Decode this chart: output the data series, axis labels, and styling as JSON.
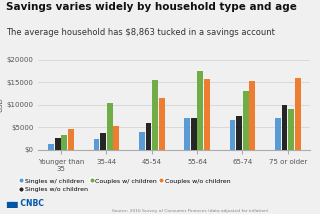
{
  "title": "Savings varies widely by household type and age",
  "subtitle": "The average household has $8,863 tucked in a savings account",
  "categories": [
    "Younger than\n35",
    "35-44",
    "45-54",
    "55-64",
    "65-74",
    "75 or older"
  ],
  "series_order": [
    "Singles w/ children",
    "Singles w/o children",
    "Couples w/ children",
    "Couples w/o children"
  ],
  "series": {
    "Singles w/ children": [
      1400,
      2400,
      4000,
      7000,
      6600,
      7000
    ],
    "Singles w/o children": [
      2700,
      3700,
      5900,
      7000,
      7500,
      10000
    ],
    "Couples w/ children": [
      3400,
      10400,
      15500,
      17500,
      13000,
      9000
    ],
    "Couples w/o children": [
      4700,
      5200,
      11500,
      15700,
      15200,
      16000
    ]
  },
  "colors": {
    "Singles w/ children": "#5b9bd5",
    "Singles w/o children": "#262626",
    "Couples w/ children": "#70ad47",
    "Couples w/o children": "#ed7d31"
  },
  "ylim": [
    0,
    20000
  ],
  "yticks": [
    0,
    5000,
    10000,
    15000,
    20000
  ],
  "ytick_labels": [
    "$0",
    "$5000",
    "$10000",
    "$15000",
    "$20000"
  ],
  "ylabel": "USD",
  "source": "Source: 2016 Survey of Consumer Finances (data adjusted for inflation)",
  "background_color": "#f0f0f0",
  "plot_bg_color": "#f0f0f0",
  "grid_color": "#d0d0d0",
  "title_fontsize": 7.5,
  "subtitle_fontsize": 6.0,
  "legend_order": [
    "Singles w/ children",
    "Singles w/o children",
    "Couples w/ children",
    "Couples w/o children"
  ]
}
